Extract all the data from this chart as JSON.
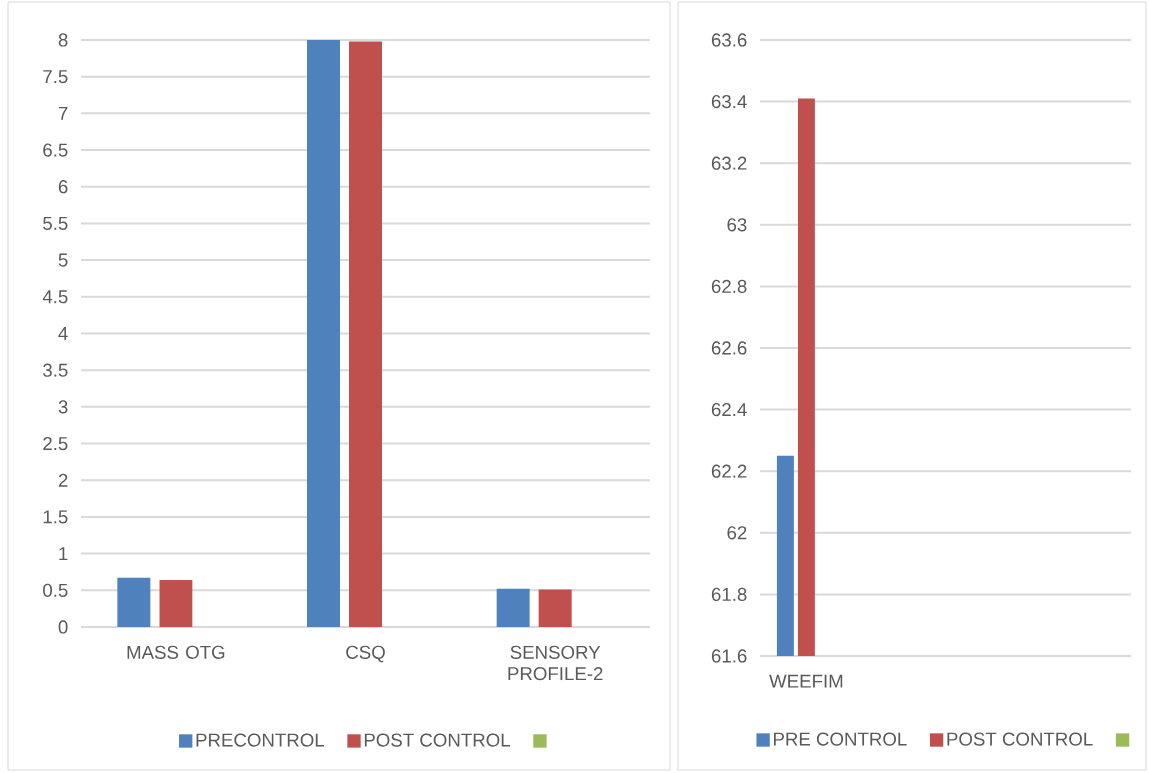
{
  "chart_data": [
    {
      "type": "bar",
      "categories": [
        "MASS OTG",
        "CSQ",
        "SENSORY PROFILE-2"
      ],
      "series": [
        {
          "name": "PRECONTROL",
          "color": "#4f81bd",
          "values": [
            0.67,
            8.0,
            0.52
          ]
        },
        {
          "name": "POST CONTROL",
          "color": "#c0504d",
          "values": [
            0.64,
            7.98,
            0.51
          ]
        },
        {
          "color": "#9bbb59",
          "values": [
            null,
            null,
            null
          ]
        }
      ],
      "ylim": [
        0,
        8
      ],
      "yticks": [
        0,
        0.5,
        1,
        1.5,
        2,
        2.5,
        3,
        3.5,
        4,
        4.5,
        5,
        5.5,
        6,
        6.5,
        7,
        7.5,
        8
      ],
      "grid": "y",
      "legend": "bottom"
    },
    {
      "type": "bar",
      "categories": [
        "WEEFIM",
        null,
        null,
        null
      ],
      "series": [
        {
          "name": "PRE CONTROL",
          "color": "#4f81bd",
          "values": [
            62.25,
            null,
            null,
            null
          ]
        },
        {
          "name": "POST CONTROL",
          "color": "#c0504d",
          "values": [
            63.41,
            null,
            null,
            null
          ]
        },
        {
          "color": "#9bbb59",
          "values": [
            null,
            null,
            null,
            null
          ]
        }
      ],
      "ylim": [
        61.6,
        63.6
      ],
      "yticks": [
        61.6,
        61.8,
        62,
        62.2,
        62.4,
        62.6,
        62.8,
        63,
        63.2,
        63.4,
        63.6
      ],
      "grid": "y",
      "legend": "bottom"
    }
  ]
}
